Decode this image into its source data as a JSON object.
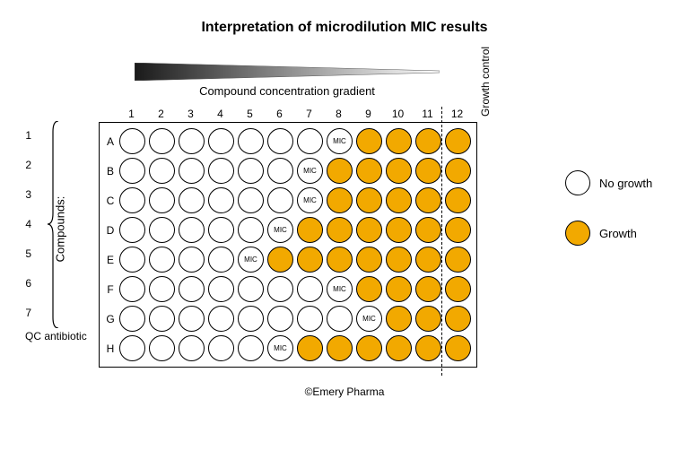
{
  "title": "Interpretation of microdilution MIC results",
  "gradient_label": "Compound concentration gradient",
  "growth_control_label": "Growth control",
  "compounds_label": "Compounds:",
  "qc_label": "QC antibiotic",
  "copyright": "©Emery Pharma",
  "legend": {
    "no_growth": "No growth",
    "growth": "Growth"
  },
  "colors": {
    "growth_fill": "#f2a900",
    "no_growth_fill": "#ffffff",
    "border": "#000000",
    "background": "#ffffff",
    "text": "#000000"
  },
  "plate": {
    "columns": [
      "1",
      "2",
      "3",
      "4",
      "5",
      "6",
      "7",
      "8",
      "9",
      "10",
      "11",
      "12"
    ],
    "row_letters": [
      "A",
      "B",
      "C",
      "D",
      "E",
      "F",
      "G",
      "H"
    ],
    "row_numbers": [
      "1",
      "2",
      "3",
      "4",
      "5",
      "6",
      "7"
    ],
    "dashed_after_column": 11,
    "mic_label": "MIC",
    "wells": [
      [
        0,
        0,
        0,
        0,
        0,
        0,
        0,
        2,
        1,
        1,
        1,
        1
      ],
      [
        0,
        0,
        0,
        0,
        0,
        0,
        2,
        1,
        1,
        1,
        1,
        1
      ],
      [
        0,
        0,
        0,
        0,
        0,
        0,
        2,
        1,
        1,
        1,
        1,
        1
      ],
      [
        0,
        0,
        0,
        0,
        0,
        2,
        1,
        1,
        1,
        1,
        1,
        1
      ],
      [
        0,
        0,
        0,
        0,
        2,
        1,
        1,
        1,
        1,
        1,
        1,
        1
      ],
      [
        0,
        0,
        0,
        0,
        0,
        0,
        0,
        2,
        1,
        1,
        1,
        1
      ],
      [
        0,
        0,
        0,
        0,
        0,
        0,
        0,
        0,
        2,
        1,
        1,
        1
      ],
      [
        0,
        0,
        0,
        0,
        0,
        2,
        1,
        1,
        1,
        1,
        1,
        1
      ]
    ]
  }
}
